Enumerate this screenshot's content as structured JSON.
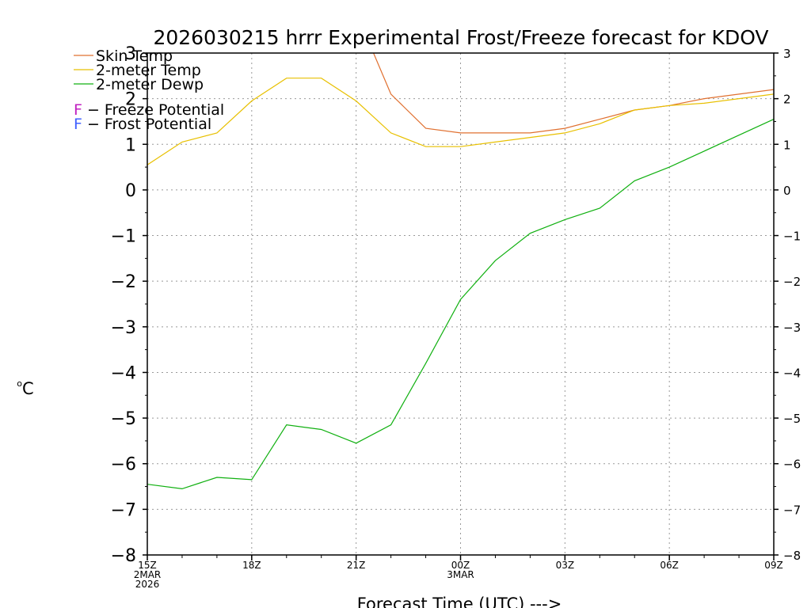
{
  "chart_data": {
    "type": "line",
    "title": "2026030215 hrrr Experimental Frost/Freeze forecast for KDOV",
    "xlabel": "Forecast Time (UTC) --->",
    "ylabel": "°C",
    "ylabel_base": "o",
    "ylabel_unit": "C",
    "ylim": [
      -8,
      3
    ],
    "yticks": [
      -8,
      -7,
      -6,
      -5,
      -4,
      -3,
      -2,
      -1,
      0,
      1,
      2,
      3
    ],
    "ytick_labels": [
      "−8",
      "−7",
      "−6",
      "−5",
      "−4",
      "−3",
      "−2",
      "−1",
      "0",
      "1",
      "2",
      "3"
    ],
    "xlim": [
      0,
      18
    ],
    "xticks": [
      {
        "x": 0,
        "label": "15Z",
        "sub1": "2MAR",
        "sub2": "2026"
      },
      {
        "x": 3,
        "label": "18Z"
      },
      {
        "x": 6,
        "label": "21Z"
      },
      {
        "x": 9,
        "label": "00Z",
        "sub1": "3MAR"
      },
      {
        "x": 12,
        "label": "03Z"
      },
      {
        "x": 15,
        "label": "06Z"
      },
      {
        "x": 18,
        "label": "09Z"
      }
    ],
    "series": [
      {
        "name": "Skin Temp",
        "color": "#e07030",
        "x": [
          6.5,
          7,
          8,
          9,
          10,
          11,
          12,
          13,
          14,
          15,
          16,
          17,
          18
        ],
        "values": [
          3.0,
          2.1,
          1.35,
          1.25,
          1.25,
          1.25,
          1.35,
          1.55,
          1.75,
          1.85,
          2.0,
          2.1,
          2.2
        ]
      },
      {
        "name": "2-meter Temp",
        "color": "#e8c000",
        "x": [
          0,
          1,
          2,
          3,
          4,
          5,
          6,
          7,
          8,
          9,
          10,
          11,
          12,
          13,
          14,
          15,
          16,
          17,
          18
        ],
        "values": [
          0.55,
          1.05,
          1.25,
          1.95,
          2.45,
          2.45,
          1.95,
          1.25,
          0.95,
          0.95,
          1.05,
          1.15,
          1.25,
          1.45,
          1.75,
          1.85,
          1.9,
          2.0,
          2.1
        ]
      },
      {
        "name": "2-meter Dewp",
        "color": "#10b010",
        "x": [
          0,
          1,
          2,
          3,
          4,
          5,
          6,
          7,
          8,
          9,
          10,
          11,
          12,
          13,
          14,
          15,
          16,
          17,
          18
        ],
        "values": [
          -6.45,
          -6.55,
          -6.3,
          -6.35,
          -5.15,
          -5.25,
          -5.55,
          -5.15,
          -3.8,
          -2.4,
          -1.55,
          -0.95,
          -0.65,
          -0.4,
          0.2,
          0.5,
          0.85,
          1.2,
          1.55
        ]
      }
    ],
    "legend": [
      {
        "text": "Skin Temp",
        "color": "#e07030",
        "kind": "line"
      },
      {
        "text": "2-meter Temp",
        "color": "#e8c000",
        "kind": "line"
      },
      {
        "text": "2-meter Dewp",
        "color": "#10b010",
        "kind": "line"
      },
      {
        "text": "F - Freeze Potential",
        "letter": "F",
        "rest": " − Freeze Potential",
        "color": "#c020c0",
        "kind": "letter"
      },
      {
        "text": "F - Frost Potential",
        "letter": "F",
        "rest": " − Frost Potential",
        "color": "#4060ff",
        "kind": "letter"
      }
    ],
    "legend_position": "top-left",
    "grid": true
  }
}
